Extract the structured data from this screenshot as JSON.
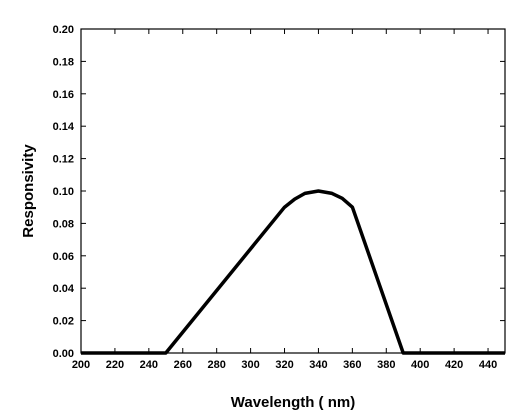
{
  "chart_data": {
    "type": "line",
    "title": "",
    "xlabel": "Wavelength ( nm)",
    "ylabel": "Responsivity",
    "xlim": [
      200,
      450
    ],
    "ylim": [
      0,
      0.2
    ],
    "x_ticks": [
      200,
      220,
      240,
      260,
      280,
      300,
      320,
      340,
      360,
      380,
      400,
      420,
      440
    ],
    "x_tick_labels": [
      "200",
      "220",
      "240",
      "260",
      "280",
      "300",
      "320",
      "340",
      "360",
      "380",
      "400",
      "420",
      "440"
    ],
    "y_ticks": [
      0,
      0.02,
      0.04,
      0.06,
      0.08,
      0.1,
      0.12,
      0.14,
      0.16,
      0.18,
      0.2
    ],
    "y_tick_labels": [
      "0.00",
      "0.02",
      "0.04",
      "0.06",
      "0.08",
      "0.10",
      "0.12",
      "0.14",
      "0.16",
      "0.18",
      "0.20"
    ],
    "grid": false,
    "line_color": "#000000",
    "series": [
      {
        "x": [
          200,
          250,
          320,
          326,
          332,
          340,
          348,
          354,
          360,
          390,
          450
        ],
        "y": [
          0,
          0,
          0.09,
          0.095,
          0.0985,
          0.1,
          0.0985,
          0.0955,
          0.09,
          0,
          0
        ]
      }
    ]
  }
}
